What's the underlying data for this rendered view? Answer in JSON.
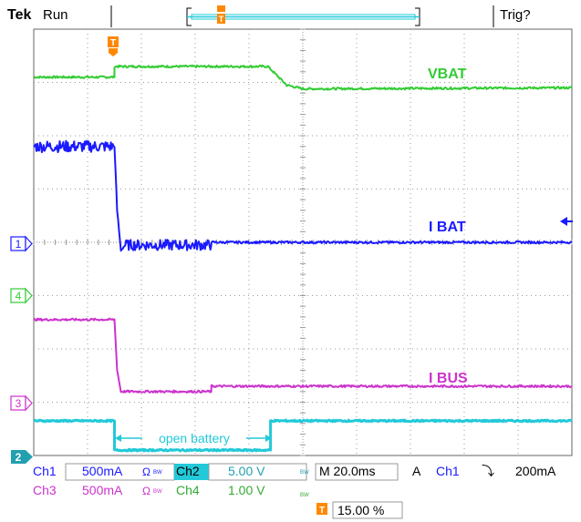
{
  "header": {
    "brand": "Tek",
    "state": "Run",
    "trigger_status": "Trig?"
  },
  "trigger_marker": {
    "label": "T",
    "position_label": "T"
  },
  "channel_markers": [
    {
      "id": "1",
      "color": "#1a1aff"
    },
    {
      "id": "4",
      "color": "#33cc33"
    },
    {
      "id": "3",
      "color": "#cc33cc"
    },
    {
      "id": "2",
      "color": "#22c9d8"
    }
  ],
  "trace_labels": {
    "vbat": "VBAT",
    "ibat": "I BAT",
    "ibus": "I BUS",
    "annotation": "open battery"
  },
  "readout": {
    "ch1_name": "Ch1",
    "ch1_scale": "500mA",
    "ch2_name": "Ch2",
    "ch2_scale": "5.00 V",
    "ch3_name": "Ch3",
    "ch3_scale": "500mA",
    "ch4_name": "Ch4",
    "ch4_scale": "1.00 V",
    "ohm_bw_1": "Ω",
    "ohm_bw_3": "Ω",
    "bw_marker": "BW",
    "timebase": "M 20.0ms",
    "trigger_mode": "A",
    "trigger_source": "Ch1",
    "trigger_slope": "⤵",
    "trigger_level": "200mA",
    "trigger_position": "15.00 %"
  },
  "colors": {
    "ch1": "#1a1aff",
    "ch2": "#22c9d8",
    "ch3": "#cc33cc",
    "ch4": "#33cc33",
    "trigger": "#ff8800",
    "grid": "#999999"
  },
  "chart_data": {
    "type": "line",
    "title": "",
    "xlabel": "",
    "ylabel": "",
    "x_unit": "divisions",
    "xlim": [
      0,
      10
    ],
    "ylim": [
      -4,
      4
    ],
    "grid": true,
    "series": [
      {
        "name": "VBAT",
        "color": "#33cc33",
        "x": [
          0,
          1.5,
          1.5,
          4.35,
          4.7,
          5.0,
          10
        ],
        "y": [
          3.1,
          3.1,
          3.3,
          3.3,
          2.95,
          2.88,
          2.9
        ]
      },
      {
        "name": "I BAT",
        "color": "#1a1aff",
        "x": [
          0,
          1.5,
          1.55,
          1.62,
          1.7,
          3.3,
          3.3,
          10
        ],
        "y": [
          1.8,
          1.8,
          0.6,
          -0.15,
          -0.05,
          -0.05,
          0.0,
          0.0
        ]
      },
      {
        "name": "I BUS",
        "color": "#cc33cc",
        "x": [
          0,
          1.5,
          1.55,
          1.62,
          1.7,
          3.3,
          3.3,
          10
        ],
        "y": [
          -1.45,
          -1.45,
          -2.4,
          -2.8,
          -2.8,
          -2.8,
          -2.7,
          -2.7
        ]
      },
      {
        "name": "Ch2",
        "color": "#22c9d8",
        "x": [
          0,
          1.5,
          1.5,
          4.4,
          4.4,
          10
        ],
        "y": [
          -3.35,
          -3.35,
          -3.9,
          -3.9,
          -3.35,
          -3.35
        ]
      }
    ]
  }
}
